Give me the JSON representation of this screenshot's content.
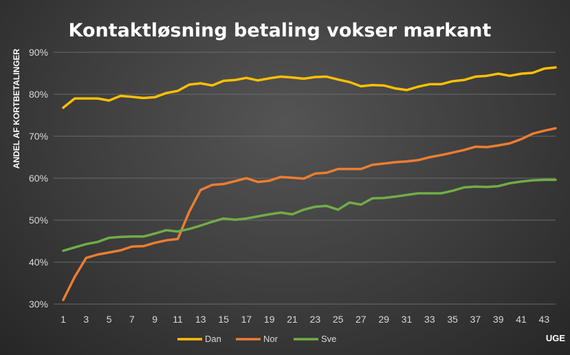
{
  "chart_data": {
    "type": "line",
    "title": "Kontaktløsning betaling vokser markant",
    "ylabel": "ANDEL AF KORTBETALINGER",
    "xlabel": "UGE",
    "ylim": [
      30,
      90
    ],
    "xlim": [
      1,
      44
    ],
    "yticks": [
      "30%",
      "40%",
      "50%",
      "60%",
      "70%",
      "80%",
      "90%"
    ],
    "xticks": [
      "1",
      "3",
      "5",
      "7",
      "9",
      "11",
      "13",
      "15",
      "17",
      "19",
      "21",
      "23",
      "25",
      "27",
      "29",
      "31",
      "33",
      "35",
      "37",
      "39",
      "41",
      "43"
    ],
    "grid": true,
    "legend_position": "bottom",
    "x": [
      1,
      2,
      3,
      4,
      5,
      6,
      7,
      8,
      9,
      10,
      11,
      12,
      13,
      14,
      15,
      16,
      17,
      18,
      19,
      20,
      21,
      22,
      23,
      24,
      25,
      26,
      27,
      28,
      29,
      30,
      31,
      32,
      33,
      34,
      35,
      36,
      37,
      38,
      39,
      40,
      41,
      42,
      43,
      44
    ],
    "series": [
      {
        "name": "Dan",
        "color": "#ffc000",
        "values": [
          76.8,
          79.0,
          79.0,
          79.0,
          78.5,
          79.6,
          79.4,
          79.1,
          79.3,
          80.3,
          80.8,
          82.3,
          82.6,
          82.1,
          83.2,
          83.4,
          83.9,
          83.3,
          83.8,
          84.2,
          84.0,
          83.7,
          84.1,
          84.2,
          83.5,
          82.9,
          81.9,
          82.2,
          82.1,
          81.4,
          81.0,
          81.8,
          82.4,
          82.4,
          83.1,
          83.4,
          84.2,
          84.4,
          84.9,
          84.4,
          84.9,
          85.1,
          86.1,
          86.4
        ]
      },
      {
        "name": "Nor",
        "color": "#ed7d31",
        "values": [
          31.0,
          36.5,
          41.0,
          41.8,
          42.3,
          42.8,
          43.7,
          43.8,
          44.6,
          45.2,
          45.5,
          52.0,
          57.2,
          58.4,
          58.6,
          59.3,
          60.0,
          59.1,
          59.4,
          60.3,
          60.1,
          59.9,
          61.1,
          61.3,
          62.2,
          62.2,
          62.2,
          63.2,
          63.5,
          63.8,
          64.0,
          64.3,
          65.0,
          65.5,
          66.1,
          66.7,
          67.5,
          67.4,
          67.8,
          68.3,
          69.3,
          70.6,
          71.3,
          71.9
        ]
      },
      {
        "name": "Sve",
        "color": "#70ad47",
        "values": [
          42.7,
          43.5,
          44.3,
          44.8,
          45.8,
          46.0,
          46.1,
          46.1,
          46.8,
          47.6,
          47.3,
          47.9,
          48.7,
          49.6,
          50.4,
          50.1,
          50.4,
          50.9,
          51.4,
          51.8,
          51.4,
          52.5,
          53.2,
          53.4,
          52.5,
          54.2,
          53.7,
          55.2,
          55.3,
          55.6,
          56.0,
          56.4,
          56.4,
          56.4,
          57.0,
          57.8,
          58.0,
          57.9,
          58.1,
          58.8,
          59.2,
          59.5,
          59.6,
          59.6
        ]
      }
    ]
  }
}
